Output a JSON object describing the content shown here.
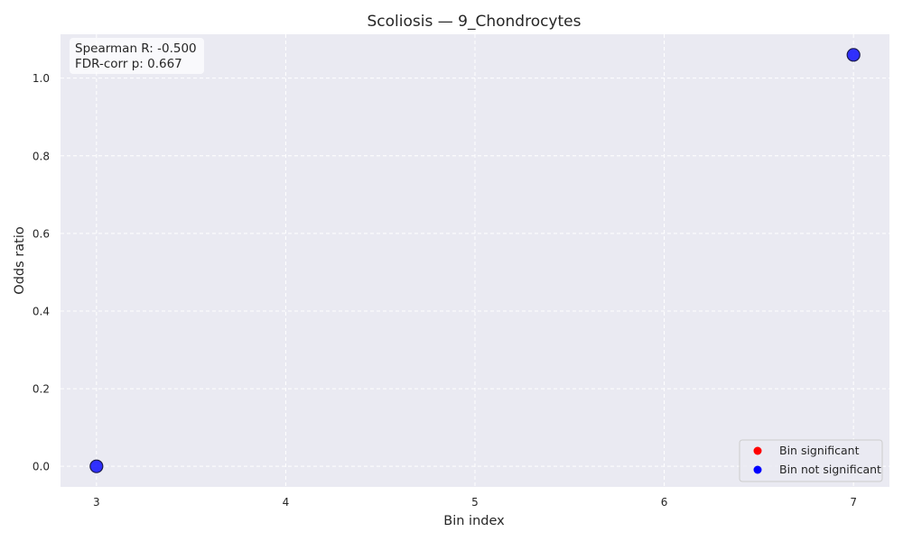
{
  "chart_data": {
    "type": "scatter",
    "title": "Scoliosis — 9_Chondrocytes",
    "xlabel": "Bin index",
    "ylabel": "Odds ratio",
    "xlim": [
      2.81,
      7.19
    ],
    "ylim": [
      -0.053,
      1.113
    ],
    "x_ticks": [
      3,
      4,
      5,
      6,
      7
    ],
    "y_ticks": [
      0.0,
      0.2,
      0.4,
      0.6,
      0.8,
      1.0
    ],
    "grid": true,
    "series": [
      {
        "name": "Bin significant",
        "color": "#ff0000",
        "points": []
      },
      {
        "name": "Bin not significant",
        "color": "#0000ff",
        "points": [
          {
            "x": 3,
            "y": 0.0
          },
          {
            "x": 7,
            "y": 1.06
          }
        ]
      }
    ],
    "annotation": {
      "lines": [
        "Spearman R: -0.500",
        "FDR-corr p: 0.667"
      ],
      "placement": "top-left"
    },
    "legend": {
      "placement": "bottom-right"
    },
    "colors": {
      "plot_background": "#eaeaf2",
      "grid": "#ffffff",
      "marker_fill": "#0000ff",
      "marker_edge": "#1a1a4a",
      "text": "#262626"
    }
  }
}
